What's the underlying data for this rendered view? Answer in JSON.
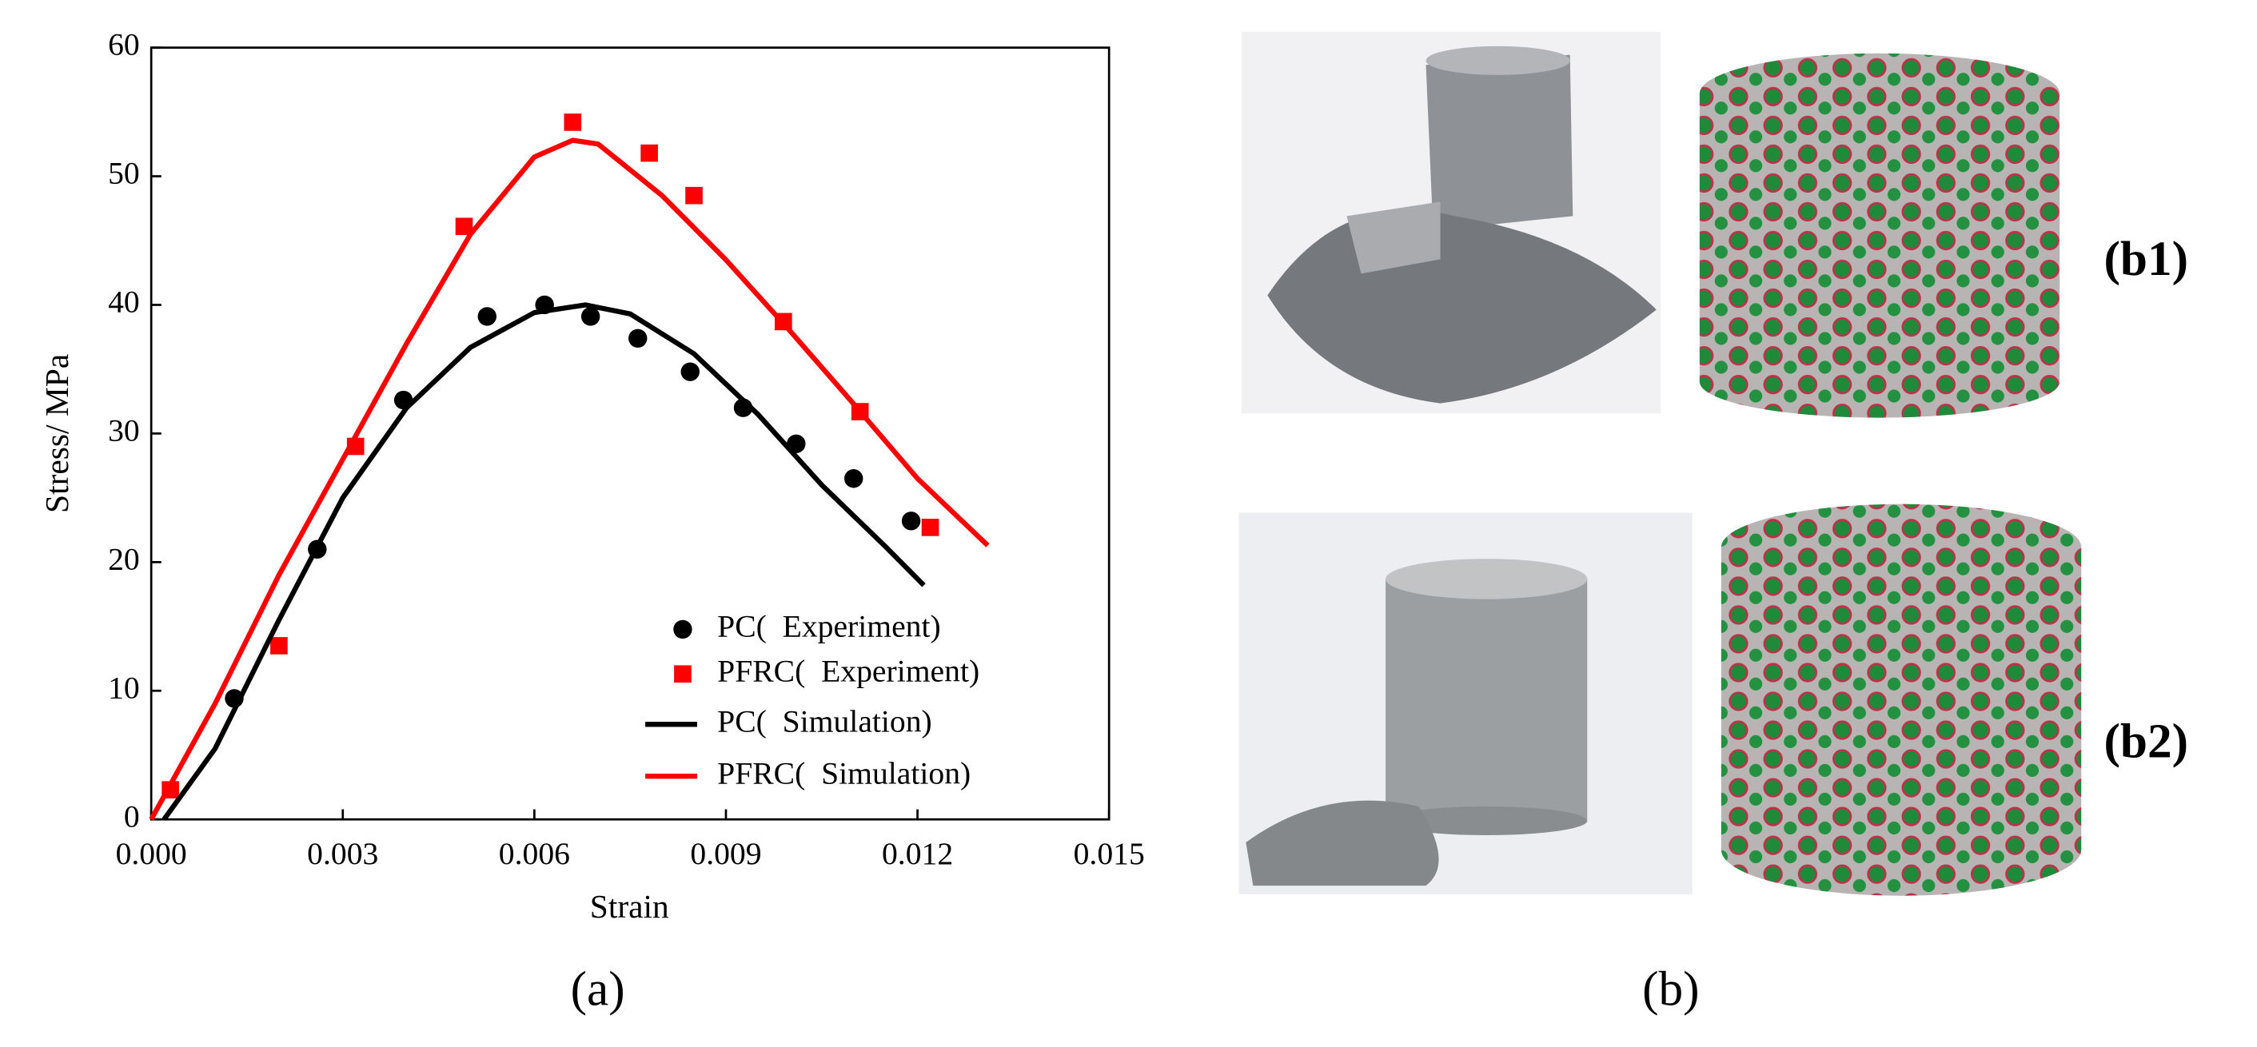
{
  "chart_data": {
    "type": "line",
    "xlabel": "Strain",
    "ylabel": "Stress/ MPa",
    "xlim": [
      0,
      0.015
    ],
    "ylim": [
      0,
      60
    ],
    "xticks": [
      {
        "value": 0,
        "label": "0.000"
      },
      {
        "value": 0.003,
        "label": "0.003"
      },
      {
        "value": 0.006,
        "label": "0.006"
      },
      {
        "value": 0.009,
        "label": "0.009"
      },
      {
        "value": 0.012,
        "label": "0.012"
      },
      {
        "value": 0.015,
        "label": "0.015"
      }
    ],
    "yticks": [
      0,
      10,
      20,
      30,
      40,
      50,
      60
    ],
    "legend": "lower right",
    "series": [
      {
        "name": "PC(  Experiment)",
        "color": "#000000",
        "mode": "markers",
        "marker": "circle",
        "x": [
          0.0013,
          0.0026,
          0.00395,
          0.00526,
          0.00616,
          0.00688,
          0.00762,
          0.00844,
          0.00927,
          0.0101,
          0.011,
          0.0119
        ],
        "values": [
          9.4,
          21.0,
          32.6,
          39.1,
          40.0,
          39.1,
          37.4,
          34.8,
          32.0,
          29.2,
          26.5,
          23.2
        ]
      },
      {
        "name": "PFRC(  Experiment)",
        "color": "#ff0000",
        "mode": "markers",
        "marker": "square",
        "x": [
          0.0003,
          0.002,
          0.0032,
          0.0049,
          0.0066,
          0.0078,
          0.0085,
          0.0099,
          0.0111,
          0.0122
        ],
        "values": [
          2.3,
          13.5,
          29.0,
          46.1,
          54.2,
          51.8,
          48.5,
          38.7,
          31.7,
          22.7
        ]
      },
      {
        "name": "PC(  Simulation)",
        "color": "#000000",
        "mode": "line",
        "x": [
          0.0002,
          0.001,
          0.002,
          0.003,
          0.004,
          0.005,
          0.006,
          0.0068,
          0.0075,
          0.0085,
          0.0095,
          0.0105,
          0.0115,
          0.0121
        ],
        "values": [
          0,
          5.5,
          15.5,
          25,
          32,
          36.7,
          39.4,
          40,
          39.3,
          36.2,
          31.5,
          26,
          21.2,
          18.2
        ]
      },
      {
        "name": "PFRC(  Simulation)",
        "color": "#ff0000",
        "mode": "line",
        "x": [
          0,
          0.001,
          0.002,
          0.003,
          0.004,
          0.005,
          0.006,
          0.0066,
          0.007,
          0.008,
          0.009,
          0.01,
          0.011,
          0.012,
          0.0131
        ],
        "values": [
          0,
          9,
          19,
          28,
          37,
          45.5,
          51.5,
          52.8,
          52.5,
          48.5,
          43.5,
          38,
          32.3,
          26.5,
          21.3
        ]
      }
    ]
  },
  "panel_labels": {
    "a": "(a)",
    "b": "(b)",
    "b1": "(b1)",
    "b2": "(b2)"
  }
}
